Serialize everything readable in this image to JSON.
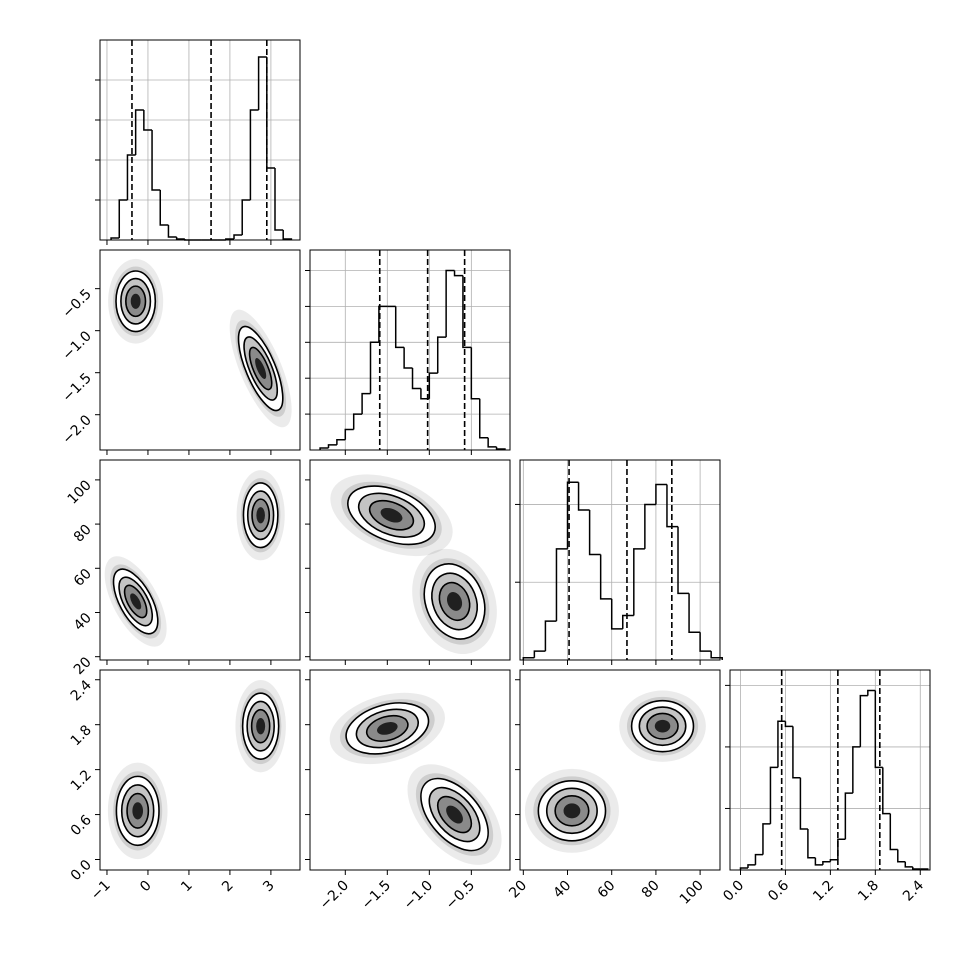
{
  "chart_data": {
    "type": "corner",
    "contour_levels": [
      0.5,
      1,
      1.5,
      2
    ],
    "parameters": [
      {
        "lim": [
          -1.17,
          3.71
        ],
        "ticks": [
          {
            "value": -1,
            "label": "−1"
          },
          0,
          1,
          2,
          3
        ]
      },
      {
        "lim": [
          -2.42,
          -0.04
        ],
        "ticks": [
          {
            "value": -2,
            "label": "−2.0"
          },
          {
            "value": -1.5,
            "label": "−1.5"
          },
          {
            "value": -1,
            "label": "−1.0"
          },
          {
            "value": -0.5,
            "label": "−0.5"
          }
        ]
      },
      {
        "lim": [
          18.5,
          109
        ],
        "ticks": [
          20,
          40,
          60,
          80,
          100
        ]
      },
      {
        "lim": [
          -0.14,
          2.53
        ],
        "ticks": [
          {
            "value": 0,
            "label": "0.0"
          },
          0.6,
          1.2,
          1.8,
          2.4
        ]
      }
    ],
    "histograms": [
      {
        "bins": [
          -0.9,
          -0.7,
          -0.5,
          -0.3,
          -0.1,
          0.1,
          0.3,
          0.5,
          0.7,
          0.9,
          1.1,
          1.3,
          1.5,
          1.7,
          1.9,
          2.1,
          2.3,
          2.5,
          2.7,
          2.9,
          3.1,
          3.3,
          3.5
        ],
        "counts": [
          2,
          40,
          85,
          130,
          110,
          50,
          15,
          3,
          1,
          0,
          0,
          0,
          0,
          0,
          1,
          5,
          40,
          130,
          183,
          72,
          10,
          1
        ],
        "quantiles": [
          -0.39,
          1.54,
          2.9
        ],
        "ylim": [
          0,
          200
        ],
        "yticks": [
          40,
          80,
          120,
          160
        ],
        "grid": true
      },
      {
        "bins": [
          -2.3,
          -2.2,
          -2.1,
          -2.0,
          -1.9,
          -1.8,
          -1.7,
          -1.6,
          -1.5,
          -1.4,
          -1.3,
          -1.2,
          -1.1,
          -1.0,
          -0.9,
          -0.8,
          -0.7,
          -0.6,
          -0.5,
          -0.4,
          -0.3,
          -0.2,
          -0.1
        ],
        "counts": [
          2,
          5,
          10,
          20,
          35,
          55,
          105,
          140,
          140,
          100,
          80,
          60,
          50,
          75,
          110,
          175,
          170,
          100,
          50,
          12,
          3,
          1
        ],
        "quantiles": [
          -1.59,
          -1.02,
          -0.58
        ],
        "ylim": [
          0,
          195
        ],
        "yticks": [
          35,
          70,
          105,
          140,
          175
        ],
        "grid": true
      },
      {
        "bins": [
          20,
          25,
          30,
          35,
          40,
          45,
          50,
          55,
          60,
          65,
          70,
          75,
          80,
          85,
          90,
          95,
          100,
          105,
          110
        ],
        "counts": [
          2,
          8,
          35,
          100,
          160,
          135,
          95,
          55,
          28,
          40,
          100,
          140,
          158,
          120,
          60,
          25,
          8,
          2
        ],
        "quantiles": [
          40.7,
          66.9,
          87.2
        ],
        "ylim": [
          0,
          180
        ],
        "yticks": [
          70,
          140
        ],
        "grid": true
      },
      {
        "bins": [
          0.0,
          0.1,
          0.2,
          0.3,
          0.4,
          0.5,
          0.6,
          0.7,
          0.8,
          0.9,
          1.0,
          1.1,
          1.2,
          1.3,
          1.4,
          1.5,
          1.6,
          1.7,
          1.8,
          1.9,
          2.0,
          2.1,
          2.2,
          2.3,
          2.4,
          2.5
        ],
        "counts": [
          2,
          5,
          15,
          45,
          100,
          145,
          140,
          90,
          40,
          12,
          5,
          8,
          10,
          30,
          75,
          120,
          170,
          175,
          100,
          55,
          20,
          8,
          3,
          1,
          1
        ],
        "quantiles": [
          0.55,
          1.3,
          1.86
        ],
        "ylim": [
          0,
          195
        ],
        "yticks": [
          60,
          120,
          180
        ],
        "grid": true
      }
    ],
    "panels": [
      {
        "x_param": 0,
        "y_param": 1,
        "clusters": [
          {
            "x": -0.3,
            "y": -0.65,
            "sx": 0.24,
            "sy": 0.18,
            "rho": 0.0
          },
          {
            "x": 2.75,
            "y": -1.45,
            "sx": 0.27,
            "sy": 0.25,
            "rho": -0.7
          }
        ]
      },
      {
        "x_param": 0,
        "y_param": 2,
        "clusters": [
          {
            "x": -0.3,
            "y": 45,
            "sx": 0.27,
            "sy": 7.3,
            "rho": -0.6
          },
          {
            "x": 2.75,
            "y": 84,
            "sx": 0.21,
            "sy": 7.3,
            "rho": 0.0
          }
        ]
      },
      {
        "x_param": 1,
        "y_param": 2,
        "clusters": [
          {
            "x": -1.45,
            "y": 84,
            "sx": 0.26,
            "sy": 6.6,
            "rho": -0.4
          },
          {
            "x": -0.7,
            "y": 45,
            "sx": 0.18,
            "sy": 8.5,
            "rho": -0.2
          }
        ]
      },
      {
        "x_param": 0,
        "y_param": 3,
        "clusters": [
          {
            "x": -0.25,
            "y": 0.65,
            "sx": 0.26,
            "sy": 0.23,
            "rho": 0.0
          },
          {
            "x": 2.75,
            "y": 1.78,
            "sx": 0.22,
            "sy": 0.22,
            "rho": 0.0
          }
        ]
      },
      {
        "x_param": 1,
        "y_param": 3,
        "clusters": [
          {
            "x": -1.5,
            "y": 1.75,
            "sx": 0.245,
            "sy": 0.17,
            "rho": 0.3
          },
          {
            "x": -0.7,
            "y": 0.6,
            "sx": 0.2,
            "sy": 0.24,
            "rho": -0.5
          }
        ]
      },
      {
        "x_param": 2,
        "y_param": 3,
        "clusters": [
          {
            "x": 42,
            "y": 0.65,
            "sx": 7.6,
            "sy": 0.2,
            "rho": 0.0
          },
          {
            "x": 83,
            "y": 1.78,
            "sx": 7,
            "sy": 0.17,
            "rho": 0.0
          }
        ]
      }
    ]
  }
}
